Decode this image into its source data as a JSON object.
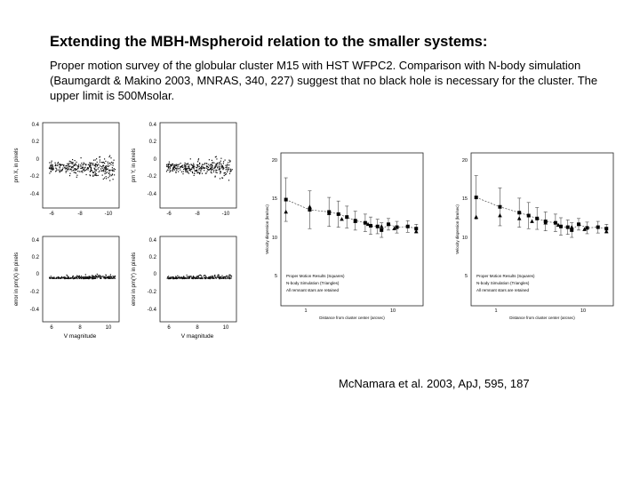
{
  "slide": {
    "title": "Extending the MBH-Mspheroid relation to the smaller systems:",
    "paragraph": "Proper motion survey of the globular cluster M15 with HST WFPC2. Comparison with N-body simulation  (Baumgardt & Makino 2003, MNRAS, 340, 227) suggest that no black hole is necessary for the cluster. The upper limit is 500Msolar.",
    "citation": "McNamara et al. 2003, ApJ, 595, 187"
  },
  "scatter_panels": {
    "top_ticks_y": [
      "0.4",
      "0.2",
      "0",
      "-0.2",
      "-0.4"
    ],
    "top_ticks_x": [
      "-6",
      "-8",
      "-10"
    ],
    "bottom_ticks_y": [
      "0.4",
      "0.2",
      "0",
      "-0.2",
      "-0.4"
    ],
    "bottom_ticks_x": [
      "6",
      "8",
      "10"
    ],
    "ylabel_top_left": "pm X, in pixels",
    "ylabel_top_right": "pm Y, in pixels",
    "ylabel_bottom_left": "error in pm(X) in pixels",
    "ylabel_bottom_right": "error in pm(Y) in pixels",
    "xlabel_left": "V magnitude",
    "xlabel_right": "V magnitude"
  },
  "dispersion_left": {
    "yticks": [
      "20",
      "15",
      "10",
      "5"
    ],
    "xticks": [
      "1",
      "10"
    ],
    "ylabel": "Velocity dispersion (km/sec)",
    "xlabel": "Distance from cluster center (arcsec)",
    "legend": [
      "Proper Motion Results (Squares)",
      "N-body Simulation (Triangles)",
      "All remnant stars are retained"
    ]
  },
  "dispersion_right": {
    "yticks": [
      "20",
      "15",
      "10",
      "5"
    ],
    "xticks": [
      "1",
      "10"
    ],
    "ylabel": "Velocity dispersion (km/sec)",
    "xlabel": "Distance from cluster center (arcsec)",
    "legend": [
      "Proper Motion Results (Squares)",
      "N-body Simulation (Triangles)",
      "All remnant stars are retained"
    ]
  },
  "chart_data": [
    {
      "type": "line",
      "xlabel": "Distance from cluster center (arcsec)",
      "ylabel": "Velocity dispersion (km/sec)",
      "xlim": [
        0.7,
        30
      ],
      "ylim": [
        5,
        20
      ],
      "log_x": true,
      "series": [
        {
          "name": "Proper Motion Results (Squares)",
          "x": [
            0.8,
            1.5,
            2.5,
            3.2,
            4.0,
            5.0,
            6.5,
            7.5,
            9,
            10,
            12,
            15,
            20,
            25
          ],
          "y": [
            14.2,
            12.8,
            12.5,
            12.2,
            11.8,
            11.3,
            11.0,
            10.6,
            10.5,
            10.0,
            10.8,
            10.4,
            10.5,
            10.2
          ],
          "err": [
            3.0,
            2.6,
            2.0,
            1.8,
            1.5,
            1.3,
            1.2,
            1.2,
            1.0,
            1.0,
            0.8,
            0.8,
            0.8,
            0.6
          ]
        },
        {
          "name": "N-body Simulation (Triangles)",
          "x": [
            0.8,
            1.5,
            2.5,
            3.5,
            5.0,
            7.0,
            10,
            14,
            25
          ],
          "y": [
            12.5,
            13.2,
            12.3,
            11.5,
            11.2,
            10.8,
            10.5,
            10.2,
            9.8
          ]
        }
      ]
    },
    {
      "type": "line",
      "xlabel": "Distance from cluster center (arcsec)",
      "ylabel": "Velocity dispersion (km/sec)",
      "xlim": [
        0.7,
        30
      ],
      "ylim": [
        5,
        20
      ],
      "log_x": true,
      "series": [
        {
          "name": "Proper Motion Results (Squares)",
          "x": [
            0.8,
            1.5,
            2.5,
            3.2,
            4.0,
            5.0,
            6.5,
            7.5,
            9,
            10,
            12,
            15,
            20,
            25
          ],
          "y": [
            14.5,
            13.2,
            12.4,
            12.0,
            11.6,
            11.2,
            11.0,
            10.5,
            10.4,
            10.0,
            10.8,
            10.3,
            10.4,
            10.2
          ],
          "err": [
            3.0,
            2.6,
            2.0,
            1.8,
            1.5,
            1.3,
            1.2,
            1.2,
            1.0,
            1.0,
            0.8,
            0.8,
            0.8,
            0.6
          ]
        },
        {
          "name": "N-body Simulation (Triangles)",
          "x": [
            0.8,
            1.5,
            2.5,
            3.5,
            5.0,
            7.0,
            10,
            14,
            25
          ],
          "y": [
            11.8,
            12.0,
            11.6,
            11.2,
            11.0,
            10.7,
            10.4,
            10.1,
            9.8
          ]
        }
      ]
    }
  ]
}
